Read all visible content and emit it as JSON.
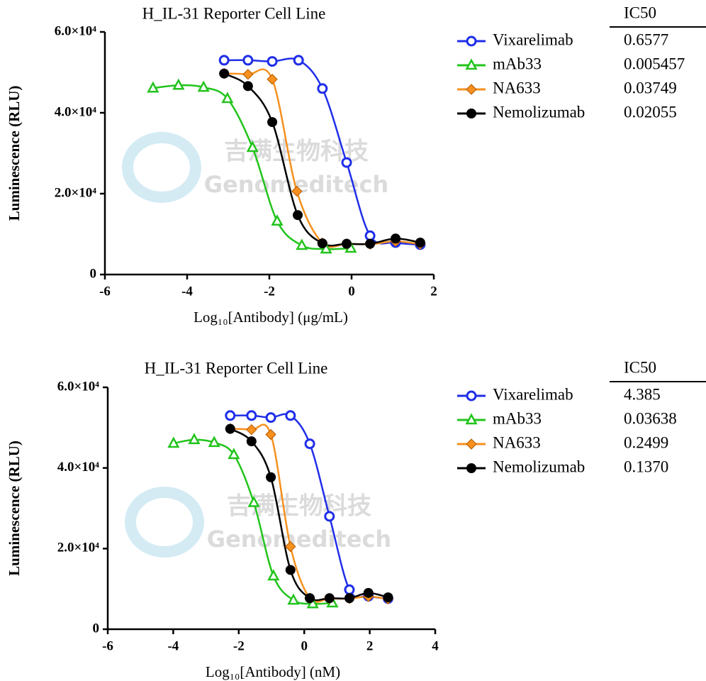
{
  "chart_data": [
    {
      "type": "line",
      "title": "H_IL-31 Reporter Cell Line",
      "x_label": "Log₁₀[Antibody] (μg/mL)",
      "y_label": "Luminescence (RLU)",
      "watermark": [
        "吉满生物科技",
        "Genomeditech"
      ],
      "legend_header": "IC50",
      "xlim": [
        -6,
        2
      ],
      "xticks": [
        -6,
        -4,
        -2,
        0,
        2
      ],
      "ylim": [
        0,
        60000
      ],
      "yticks": [
        0,
        {
          "value": 20000,
          "label": "2.0×10⁴"
        },
        {
          "value": 40000,
          "label": "4.0×10⁴"
        },
        {
          "value": 60000,
          "label": "6.0×10⁴"
        }
      ],
      "series": [
        {
          "name": "Vixarelimab",
          "ic50": "0.6577",
          "color": "#1f2ee8",
          "marker": "open-circle",
          "x": [
            -3.1,
            -2.52,
            -1.93,
            -1.29,
            -0.71,
            -0.12,
            0.45,
            1.07,
            1.67
          ],
          "values": [
            53000,
            53000,
            52700,
            53000,
            46000,
            27700,
            9600,
            7900,
            7400
          ]
        },
        {
          "name": "mAb33",
          "ic50": "0.005457",
          "color": "#22c41c",
          "marker": "open-triangle",
          "x": [
            -4.83,
            -4.21,
            -3.6,
            -3.02,
            -2.41,
            -1.81,
            -1.21,
            -0.62,
            -0.02
          ],
          "values": [
            46100,
            46800,
            46300,
            43500,
            31400,
            13200,
            7200,
            6300,
            6500
          ]
        },
        {
          "name": "NA633",
          "ic50": "0.03749",
          "color": "#f7901e",
          "marker": "diamond",
          "x": [
            -3.1,
            -2.52,
            -1.93,
            -1.33,
            -0.71,
            -0.12,
            0.45,
            1.07,
            1.67
          ],
          "values": [
            49700,
            49500,
            48300,
            20600,
            7800,
            7600,
            7500,
            8200,
            7500
          ]
        },
        {
          "name": "Nemolizumab",
          "ic50": "0.02055",
          "color": "#000000",
          "marker": "filled-circle",
          "x": [
            -3.1,
            -2.52,
            -1.93,
            -1.31,
            -0.71,
            -0.12,
            0.45,
            1.07,
            1.67
          ],
          "values": [
            49700,
            46600,
            37700,
            14700,
            7700,
            7600,
            7600,
            8900,
            7900
          ]
        }
      ]
    },
    {
      "type": "line",
      "title": "H_IL-31 Reporter Cell Line",
      "x_label": "Log₁₀[Antibody] (nM)",
      "y_label": "Luminescence (RLU)",
      "watermark": [
        "吉满生物科技",
        "Genomeditech"
      ],
      "legend_header": "IC50",
      "xlim": [
        -6,
        4
      ],
      "xticks": [
        -6,
        -4,
        -2,
        0,
        2,
        4
      ],
      "ylim": [
        0,
        60000
      ],
      "yticks": [
        0,
        {
          "value": 20000,
          "label": "2.0×10⁴"
        },
        {
          "value": 40000,
          "label": "4.0×10⁴"
        },
        {
          "value": 60000,
          "label": "6.0×10⁴"
        }
      ],
      "series": [
        {
          "name": "Vixarelimab",
          "ic50": "4.385",
          "color": "#1f2ee8",
          "marker": "open-circle",
          "x": [
            -2.26,
            -1.61,
            -1.02,
            -0.42,
            0.17,
            0.77,
            1.38,
            1.96,
            2.56
          ],
          "values": [
            53000,
            53000,
            52500,
            53000,
            46000,
            28000,
            9800,
            8200,
            7600
          ]
        },
        {
          "name": "mAb33",
          "ic50": "0.03638",
          "color": "#22c41c",
          "marker": "open-triangle",
          "x": [
            -3.99,
            -3.36,
            -2.75,
            -2.15,
            -1.54,
            -0.94,
            -0.33,
            0.26,
            0.86
          ],
          "values": [
            46100,
            47000,
            46300,
            43300,
            31400,
            13200,
            7200,
            6300,
            6500
          ]
        },
        {
          "name": "NA633",
          "ic50": "0.2499",
          "color": "#f7901e",
          "marker": "diamond",
          "x": [
            -2.26,
            -1.61,
            -1.02,
            -0.42,
            0.17,
            0.77,
            1.38,
            1.96,
            2.56
          ],
          "values": [
            49700,
            49500,
            48300,
            20500,
            7700,
            7600,
            7600,
            8100,
            7500
          ]
        },
        {
          "name": "Nemolizumab",
          "ic50": "0.1370",
          "color": "#000000",
          "marker": "filled-circle",
          "x": [
            -2.26,
            -1.61,
            -1.02,
            -0.42,
            0.17,
            0.77,
            1.38,
            1.96,
            2.56
          ],
          "values": [
            49700,
            46600,
            37700,
            14700,
            7700,
            7700,
            7700,
            9000,
            7900
          ]
        }
      ]
    }
  ]
}
